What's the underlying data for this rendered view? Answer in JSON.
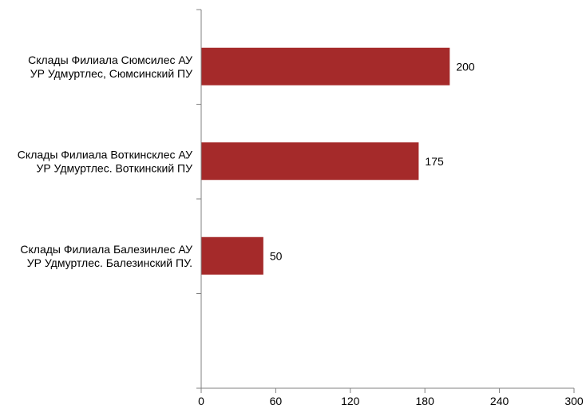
{
  "chart_data": {
    "type": "bar",
    "orientation": "horizontal",
    "categories": [
      [
        "Склады Филиала Сюмсилес АУ",
        "УР Удмуртлес, Сюмсинский ПУ"
      ],
      [
        "Склады Филиала Воткинсклес АУ",
        "УР Удмуртлес. Воткинский ПУ"
      ],
      [
        "Склады Филиала Балезинлес АУ",
        "УР Удмуртлес. Балезинский ПУ."
      ]
    ],
    "values": [
      200,
      175,
      50
    ],
    "data_labels": [
      "200",
      "175",
      "50"
    ],
    "xlim": [
      0,
      300
    ],
    "xticks": [
      0,
      60,
      120,
      180,
      240,
      300
    ],
    "tick_labels": [
      "0",
      "60",
      "120",
      "180",
      "240",
      "300"
    ],
    "title": "",
    "xlabel": "",
    "ylabel": "",
    "grid": false,
    "legend": false,
    "colors": {
      "bar": "#A52A2A",
      "axis": "#808080"
    }
  }
}
